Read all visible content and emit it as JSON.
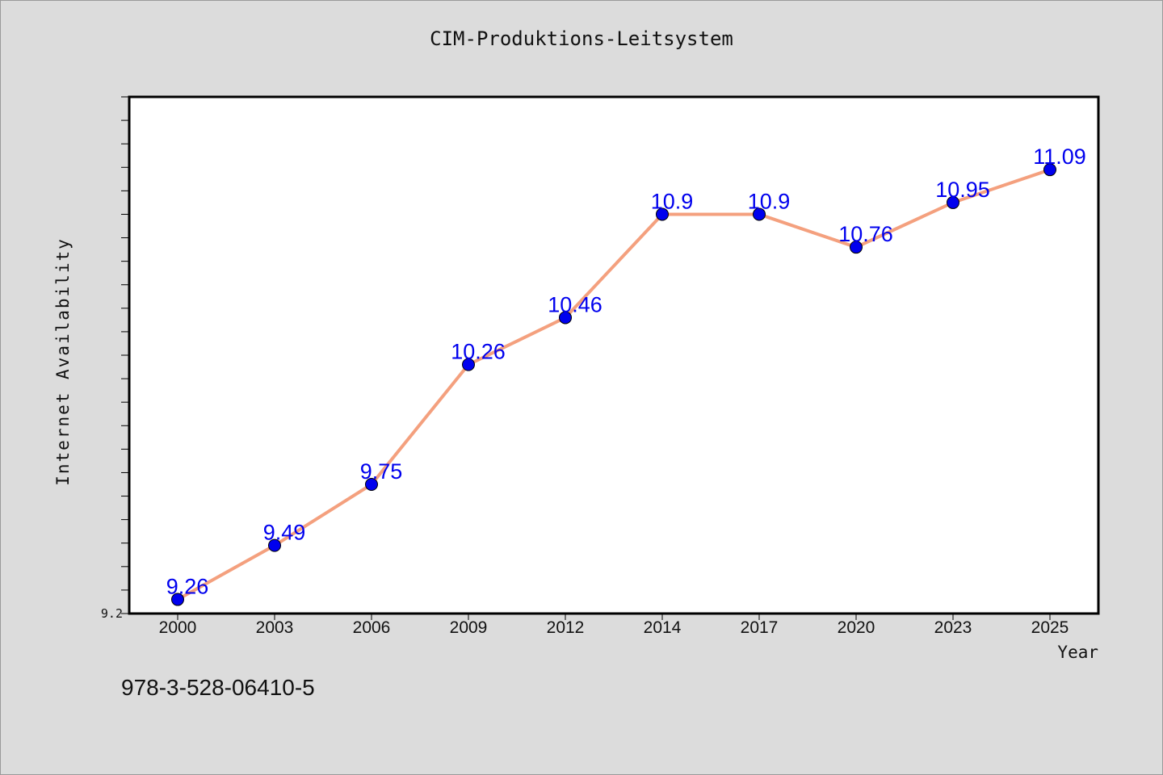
{
  "chart_data": {
    "type": "line",
    "title": "CIM-Produktions-Leitsystem",
    "xlabel": "Year",
    "ylabel": "Internet Availability",
    "categories": [
      "2000",
      "2003",
      "2006",
      "2009",
      "2012",
      "2014",
      "2017",
      "2020",
      "2023",
      "2025"
    ],
    "series": [
      {
        "values": [
          9.26,
          9.49,
          9.75,
          10.26,
          10.46,
          10.9,
          10.9,
          10.76,
          10.95,
          11.09
        ],
        "labels": [
          "9.26",
          "9.49",
          "9.75",
          "10.26",
          "10.46",
          "10.9",
          "10.9",
          "10.76",
          "10.95",
          "11.09"
        ],
        "line_color": "#f4a07e",
        "marker_color": "#0000ee"
      }
    ],
    "y_tick_labels": [
      {
        "value": 9.2,
        "label": "9.2"
      }
    ],
    "ylim": [
      9.2,
      11.4
    ],
    "grid": false
  },
  "footer": {
    "isbn": "978-3-528-06410-5"
  },
  "colors": {
    "background": "#dcdcdc",
    "plot_background": "#ffffff"
  }
}
